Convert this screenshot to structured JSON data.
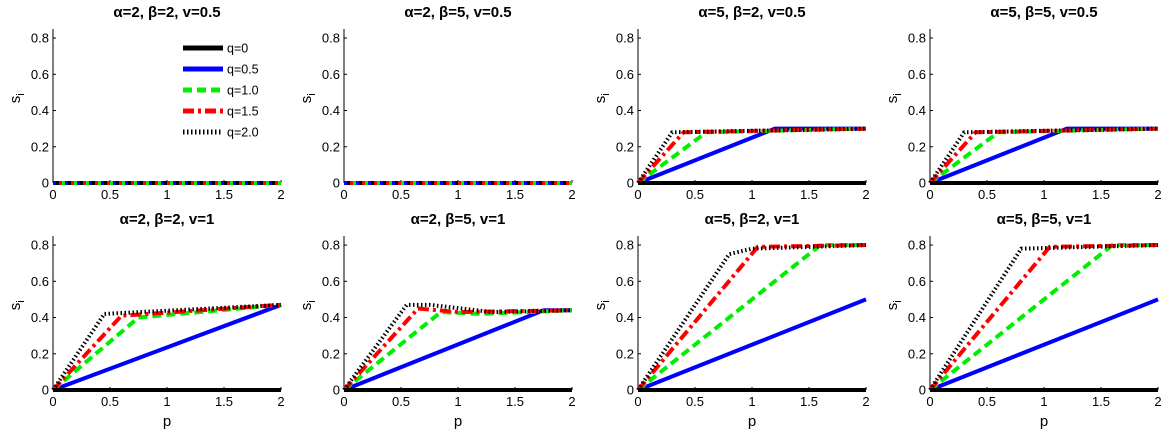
{
  "chart_data": [
    {
      "type": "line",
      "title": "α=2, β=2, v=0.5",
      "xlabel": "",
      "ylabel": "s",
      "xlim": [
        0,
        2
      ],
      "ylim": [
        0,
        0.85
      ],
      "xticks": [
        "0",
        "0.5",
        "1",
        "1.5",
        "2"
      ],
      "yticks": [
        "0",
        "0.2",
        "0.4",
        "0.6",
        "0.8"
      ],
      "series": [
        {
          "name": "q=0",
          "x": [
            0,
            2
          ],
          "y": [
            0,
            0
          ]
        },
        {
          "name": "q=0.5",
          "x": [
            0,
            2
          ],
          "y": [
            0,
            0
          ]
        },
        {
          "name": "q=1.0",
          "x": [
            0,
            2
          ],
          "y": [
            0,
            0
          ]
        },
        {
          "name": "q=1.5",
          "x": [
            0,
            2
          ],
          "y": [
            0,
            0
          ]
        },
        {
          "name": "q=2.0",
          "x": [
            0,
            2
          ],
          "y": [
            0,
            0
          ]
        }
      ],
      "show_legend": true
    },
    {
      "type": "line",
      "title": "α=2, β=5, v=0.5",
      "xlabel": "",
      "ylabel": "s",
      "xlim": [
        0,
        2
      ],
      "ylim": [
        0,
        0.85
      ],
      "xticks": [
        "0",
        "0.5",
        "1",
        "1.5",
        "2"
      ],
      "yticks": [
        "0",
        "0.2",
        "0.4",
        "0.6",
        "0.8"
      ],
      "series": [
        {
          "name": "q=0",
          "x": [
            0,
            2
          ],
          "y": [
            0,
            0
          ]
        },
        {
          "name": "q=0.5",
          "x": [
            0,
            2
          ],
          "y": [
            0,
            0
          ]
        },
        {
          "name": "q=1.0",
          "x": [
            0,
            2
          ],
          "y": [
            0,
            0
          ]
        },
        {
          "name": "q=1.5",
          "x": [
            0,
            2
          ],
          "y": [
            0,
            0
          ]
        },
        {
          "name": "q=2.0",
          "x": [
            0,
            2
          ],
          "y": [
            0,
            0
          ]
        }
      ],
      "show_legend": false
    },
    {
      "type": "line",
      "title": "α=5, β=2, v=0.5",
      "xlabel": "",
      "ylabel": "s",
      "xlim": [
        0,
        2
      ],
      "ylim": [
        0,
        0.85
      ],
      "xticks": [
        "0",
        "0.5",
        "1",
        "1.5",
        "2"
      ],
      "yticks": [
        "0",
        "0.2",
        "0.4",
        "0.6",
        "0.8"
      ],
      "series": [
        {
          "name": "q=0",
          "x": [
            0,
            2
          ],
          "y": [
            0,
            0
          ]
        },
        {
          "name": "q=0.5",
          "x": [
            0,
            1.2,
            2
          ],
          "y": [
            0,
            0.3,
            0.3
          ]
        },
        {
          "name": "q=1.0",
          "x": [
            0,
            0.6,
            2
          ],
          "y": [
            0,
            0.28,
            0.3
          ]
        },
        {
          "name": "q=1.5",
          "x": [
            0,
            0.4,
            2
          ],
          "y": [
            0,
            0.28,
            0.3
          ]
        },
        {
          "name": "q=2.0",
          "x": [
            0,
            0.3,
            2
          ],
          "y": [
            0,
            0.28,
            0.3
          ]
        }
      ],
      "show_legend": false
    },
    {
      "type": "line",
      "title": "α=5, β=5, v=0.5",
      "xlabel": "",
      "ylabel": "s",
      "xlim": [
        0,
        2
      ],
      "ylim": [
        0,
        0.85
      ],
      "xticks": [
        "0",
        "0.5",
        "1",
        "1.5",
        "2"
      ],
      "yticks": [
        "0",
        "0.2",
        "0.4",
        "0.6",
        "0.8"
      ],
      "series": [
        {
          "name": "q=0",
          "x": [
            0,
            2
          ],
          "y": [
            0,
            0
          ]
        },
        {
          "name": "q=0.5",
          "x": [
            0,
            1.2,
            2
          ],
          "y": [
            0,
            0.3,
            0.3
          ]
        },
        {
          "name": "q=1.0",
          "x": [
            0,
            0.6,
            2
          ],
          "y": [
            0,
            0.28,
            0.3
          ]
        },
        {
          "name": "q=1.5",
          "x": [
            0,
            0.4,
            2
          ],
          "y": [
            0,
            0.28,
            0.3
          ]
        },
        {
          "name": "q=2.0",
          "x": [
            0,
            0.3,
            2
          ],
          "y": [
            0,
            0.28,
            0.3
          ]
        }
      ],
      "show_legend": false
    },
    {
      "type": "line",
      "title": "α=2, β=2, v=1",
      "xlabel": "p",
      "ylabel": "s",
      "xlim": [
        0,
        2
      ],
      "ylim": [
        0,
        0.85
      ],
      "xticks": [
        "0",
        "0.5",
        "1",
        "1.5",
        "2"
      ],
      "yticks": [
        "0",
        "0.2",
        "0.4",
        "0.6",
        "0.8"
      ],
      "series": [
        {
          "name": "q=0",
          "x": [
            0,
            2
          ],
          "y": [
            0,
            0
          ]
        },
        {
          "name": "q=0.5",
          "x": [
            0,
            2
          ],
          "y": [
            0,
            0.47
          ]
        },
        {
          "name": "q=1.0",
          "x": [
            0,
            0.75,
            2
          ],
          "y": [
            0,
            0.4,
            0.47
          ]
        },
        {
          "name": "q=1.5",
          "x": [
            0,
            0.6,
            2
          ],
          "y": [
            0,
            0.41,
            0.47
          ]
        },
        {
          "name": "q=2.0",
          "x": [
            0,
            0.45,
            2
          ],
          "y": [
            0,
            0.42,
            0.47
          ]
        }
      ],
      "show_legend": false
    },
    {
      "type": "line",
      "title": "α=2, β=5, v=1",
      "xlabel": "p",
      "ylabel": "s",
      "xlim": [
        0,
        2
      ],
      "ylim": [
        0,
        0.85
      ],
      "xticks": [
        "0",
        "0.5",
        "1",
        "1.5",
        "2"
      ],
      "yticks": [
        "0",
        "0.2",
        "0.4",
        "0.6",
        "0.8"
      ],
      "series": [
        {
          "name": "q=0",
          "x": [
            0,
            2
          ],
          "y": [
            0,
            0
          ]
        },
        {
          "name": "q=0.5",
          "x": [
            0,
            1.75,
            2
          ],
          "y": [
            0,
            0.44,
            0.44
          ]
        },
        {
          "name": "q=1.0",
          "x": [
            0,
            0.85,
            1.2,
            2
          ],
          "y": [
            0,
            0.43,
            0.42,
            0.44
          ]
        },
        {
          "name": "q=1.5",
          "x": [
            0,
            0.65,
            1.0,
            2
          ],
          "y": [
            0,
            0.45,
            0.43,
            0.44
          ]
        },
        {
          "name": "q=2.0",
          "x": [
            0,
            0.55,
            0.75,
            1.3,
            2
          ],
          "y": [
            0,
            0.47,
            0.47,
            0.43,
            0.44
          ]
        }
      ],
      "show_legend": false
    },
    {
      "type": "line",
      "title": "α=5, β=2, v=1",
      "xlabel": "p",
      "ylabel": "s",
      "xlim": [
        0,
        2
      ],
      "ylim": [
        0,
        0.85
      ],
      "xticks": [
        "0",
        "0.5",
        "1",
        "1.5",
        "2"
      ],
      "yticks": [
        "0",
        "0.2",
        "0.4",
        "0.6",
        "0.8"
      ],
      "series": [
        {
          "name": "q=0",
          "x": [
            0,
            2
          ],
          "y": [
            0,
            0
          ]
        },
        {
          "name": "q=0.5",
          "x": [
            0,
            2
          ],
          "y": [
            0,
            0.5
          ]
        },
        {
          "name": "q=1.0",
          "x": [
            0,
            1.6,
            2
          ],
          "y": [
            0,
            0.8,
            0.8
          ]
        },
        {
          "name": "q=1.5",
          "x": [
            0,
            1.05,
            2
          ],
          "y": [
            0,
            0.79,
            0.8
          ]
        },
        {
          "name": "q=2.0",
          "x": [
            0,
            0.8,
            1.0,
            2
          ],
          "y": [
            0,
            0.75,
            0.78,
            0.8
          ]
        }
      ],
      "show_legend": false
    },
    {
      "type": "line",
      "title": "α=5, β=5, v=1",
      "xlabel": "p",
      "ylabel": "s",
      "xlim": [
        0,
        2
      ],
      "ylim": [
        0,
        0.85
      ],
      "xticks": [
        "0",
        "0.5",
        "1",
        "1.5",
        "2"
      ],
      "yticks": [
        "0",
        "0.2",
        "0.4",
        "0.6",
        "0.8"
      ],
      "series": [
        {
          "name": "q=0",
          "x": [
            0,
            2
          ],
          "y": [
            0,
            0
          ]
        },
        {
          "name": "q=0.5",
          "x": [
            0,
            2
          ],
          "y": [
            0,
            0.5
          ]
        },
        {
          "name": "q=1.0",
          "x": [
            0,
            1.6,
            2
          ],
          "y": [
            0,
            0.8,
            0.8
          ]
        },
        {
          "name": "q=1.5",
          "x": [
            0,
            1.05,
            2
          ],
          "y": [
            0,
            0.79,
            0.8
          ]
        },
        {
          "name": "q=2.0",
          "x": [
            0,
            0.8,
            2
          ],
          "y": [
            0,
            0.78,
            0.8
          ]
        }
      ],
      "show_legend": false
    }
  ],
  "legend": [
    "q=0",
    "q=0.5",
    "q=1.0",
    "q=1.5",
    "q=2.0"
  ],
  "ylabel_subscript": "i",
  "colors": {
    "q=0": "#000000",
    "q=0.5": "#0000ff",
    "q=1.0": "#00ee00",
    "q=1.5": "#ff0000",
    "q=2.0": "#000000"
  }
}
